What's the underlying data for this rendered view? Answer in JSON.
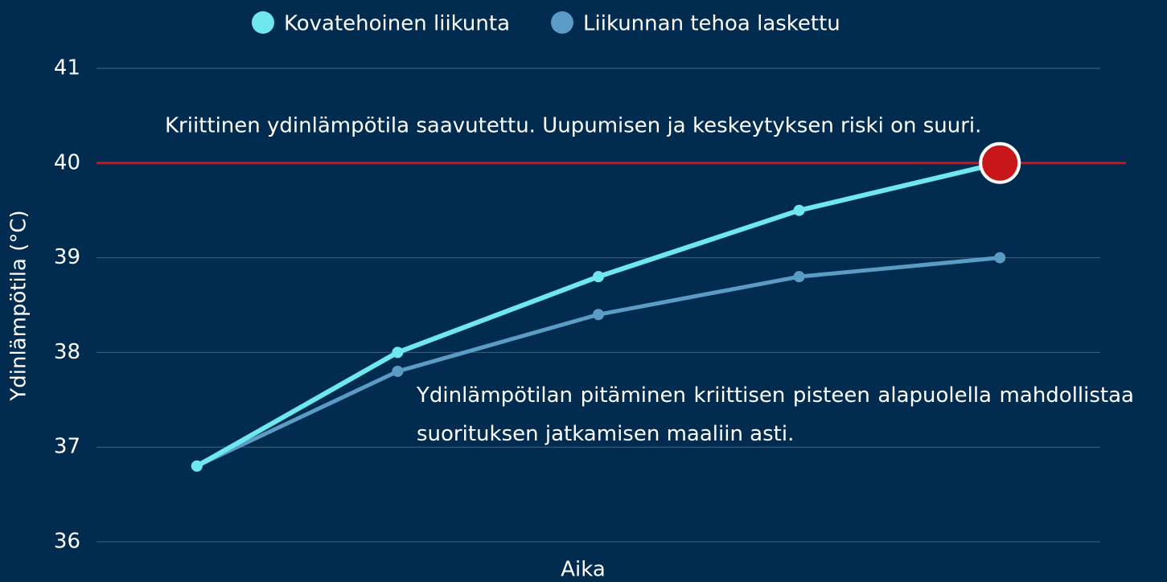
{
  "chart_data": {
    "type": "line",
    "categories": [
      null,
      null,
      null,
      null,
      null
    ],
    "series": [
      {
        "name": "Kovatehoinen liikunta",
        "color": "#6ee8ec",
        "values": [
          36.8,
          38.0,
          38.8,
          39.5,
          40.0
        ]
      },
      {
        "name": "Liikunnan tehoa laskettu",
        "color": "#5b9cc6",
        "values": [
          36.8,
          37.8,
          38.4,
          38.8,
          39.0
        ]
      }
    ],
    "ylim": [
      36,
      41
    ],
    "yticks": [
      36,
      37,
      38,
      39,
      40,
      41
    ],
    "grid": true,
    "y_label": "Ydinlämpötila (°C)",
    "x_label": "Aika",
    "reference_line": {
      "value": 40,
      "color": "#c8161b"
    },
    "annotations": [
      "Kriittinen ydinlämpötila saavutettu. Uupumisen ja keskeytyksen riski on suuri.",
      "Ydinlämpötilan pitäminen kriittisen pisteen alapuolella mahdollistaa suorituksen jatkamisen maaliin asti."
    ],
    "legend": "top"
  }
}
